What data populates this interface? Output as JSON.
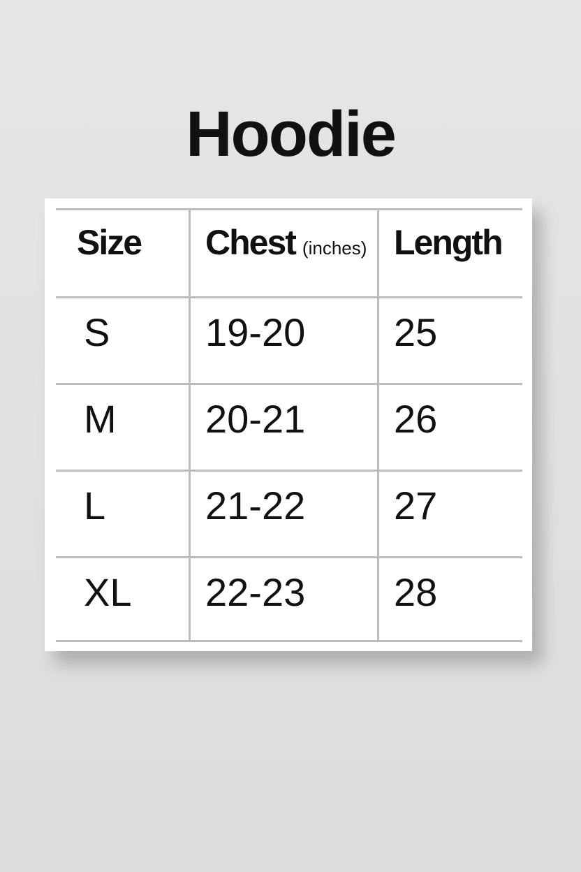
{
  "title": "Hoodie",
  "table": {
    "header": [
      {
        "label": "Size"
      },
      {
        "label": "Chest",
        "unit": "(inches)"
      },
      {
        "label": "Length"
      }
    ],
    "rows": [
      [
        "S",
        "19-20",
        "25"
      ],
      [
        "M",
        "20-21",
        "26"
      ],
      [
        "L",
        "21-22",
        "27"
      ],
      [
        "XL",
        "22-23",
        "28"
      ]
    ]
  }
}
